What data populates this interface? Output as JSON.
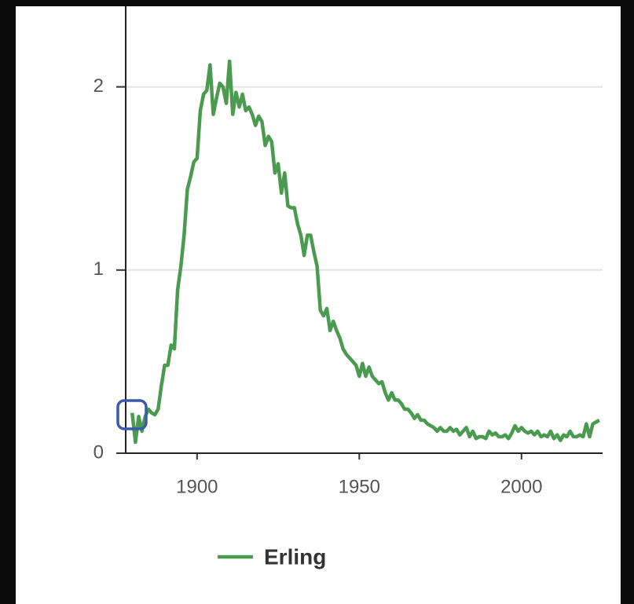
{
  "chart_data": {
    "type": "line",
    "x": [
      1880,
      1881,
      1882,
      1883,
      1884,
      1885,
      1886,
      1887,
      1888,
      1889,
      1890,
      1891,
      1892,
      1893,
      1894,
      1895,
      1896,
      1897,
      1898,
      1899,
      1900,
      1901,
      1902,
      1903,
      1904,
      1905,
      1906,
      1907,
      1908,
      1909,
      1910,
      1911,
      1912,
      1913,
      1914,
      1915,
      1916,
      1917,
      1918,
      1919,
      1920,
      1921,
      1922,
      1923,
      1924,
      1925,
      1926,
      1927,
      1928,
      1929,
      1930,
      1931,
      1932,
      1933,
      1934,
      1935,
      1936,
      1937,
      1938,
      1939,
      1940,
      1941,
      1942,
      1943,
      1944,
      1945,
      1946,
      1947,
      1948,
      1949,
      1950,
      1951,
      1952,
      1953,
      1954,
      1955,
      1956,
      1957,
      1958,
      1959,
      1960,
      1961,
      1962,
      1963,
      1964,
      1965,
      1966,
      1967,
      1968,
      1969,
      1970,
      1971,
      1972,
      1973,
      1974,
      1975,
      1976,
      1977,
      1978,
      1979,
      1980,
      1981,
      1982,
      1983,
      1984,
      1985,
      1986,
      1987,
      1988,
      1989,
      1990,
      1991,
      1992,
      1993,
      1994,
      1995,
      1996,
      1997,
      1998,
      1999,
      2000,
      2001,
      2002,
      2003,
      2004,
      2005,
      2006,
      2007,
      2008,
      2009,
      2010,
      2011,
      2012,
      2013,
      2014,
      2015,
      2016,
      2017,
      2018,
      2019,
      2020,
      2021,
      2022,
      2023,
      2024
    ],
    "series": [
      {
        "name": "Erling",
        "color": "#4a9a4f",
        "values": [
          0.22,
          0.06,
          0.2,
          0.12,
          0.2,
          0.24,
          0.22,
          0.21,
          0.24,
          0.37,
          0.48,
          0.48,
          0.59,
          0.57,
          0.89,
          1.02,
          1.19,
          1.44,
          1.51,
          1.59,
          1.61,
          1.87,
          1.96,
          1.98,
          2.12,
          1.85,
          1.94,
          2.02,
          2.0,
          1.91,
          2.14,
          1.85,
          1.97,
          1.89,
          1.96,
          1.87,
          1.89,
          1.85,
          1.79,
          1.84,
          1.81,
          1.68,
          1.73,
          1.7,
          1.53,
          1.58,
          1.42,
          1.53,
          1.35,
          1.34,
          1.34,
          1.25,
          1.19,
          1.08,
          1.19,
          1.19,
          1.1,
          1.02,
          0.78,
          0.75,
          0.79,
          0.67,
          0.72,
          0.67,
          0.63,
          0.57,
          0.54,
          0.52,
          0.5,
          0.48,
          0.42,
          0.49,
          0.42,
          0.47,
          0.42,
          0.4,
          0.38,
          0.39,
          0.33,
          0.29,
          0.33,
          0.29,
          0.29,
          0.27,
          0.24,
          0.24,
          0.22,
          0.19,
          0.21,
          0.18,
          0.18,
          0.16,
          0.15,
          0.14,
          0.12,
          0.14,
          0.12,
          0.12,
          0.14,
          0.12,
          0.13,
          0.1,
          0.12,
          0.14,
          0.09,
          0.12,
          0.08,
          0.09,
          0.09,
          0.08,
          0.12,
          0.1,
          0.11,
          0.09,
          0.09,
          0.1,
          0.08,
          0.11,
          0.15,
          0.12,
          0.14,
          0.12,
          0.11,
          0.12,
          0.1,
          0.12,
          0.09,
          0.1,
          0.09,
          0.12,
          0.08,
          0.1,
          0.07,
          0.1,
          0.09,
          0.12,
          0.09,
          0.09,
          0.1,
          0.09,
          0.16,
          0.09,
          0.16,
          0.17,
          0.18
        ]
      }
    ],
    "xlim": [
      1878,
      2025
    ],
    "xticks": [
      1900,
      1950,
      2000
    ],
    "ylim": [
      0,
      2.44
    ],
    "yticks": [
      0,
      1,
      2
    ],
    "grid": true
  }
}
